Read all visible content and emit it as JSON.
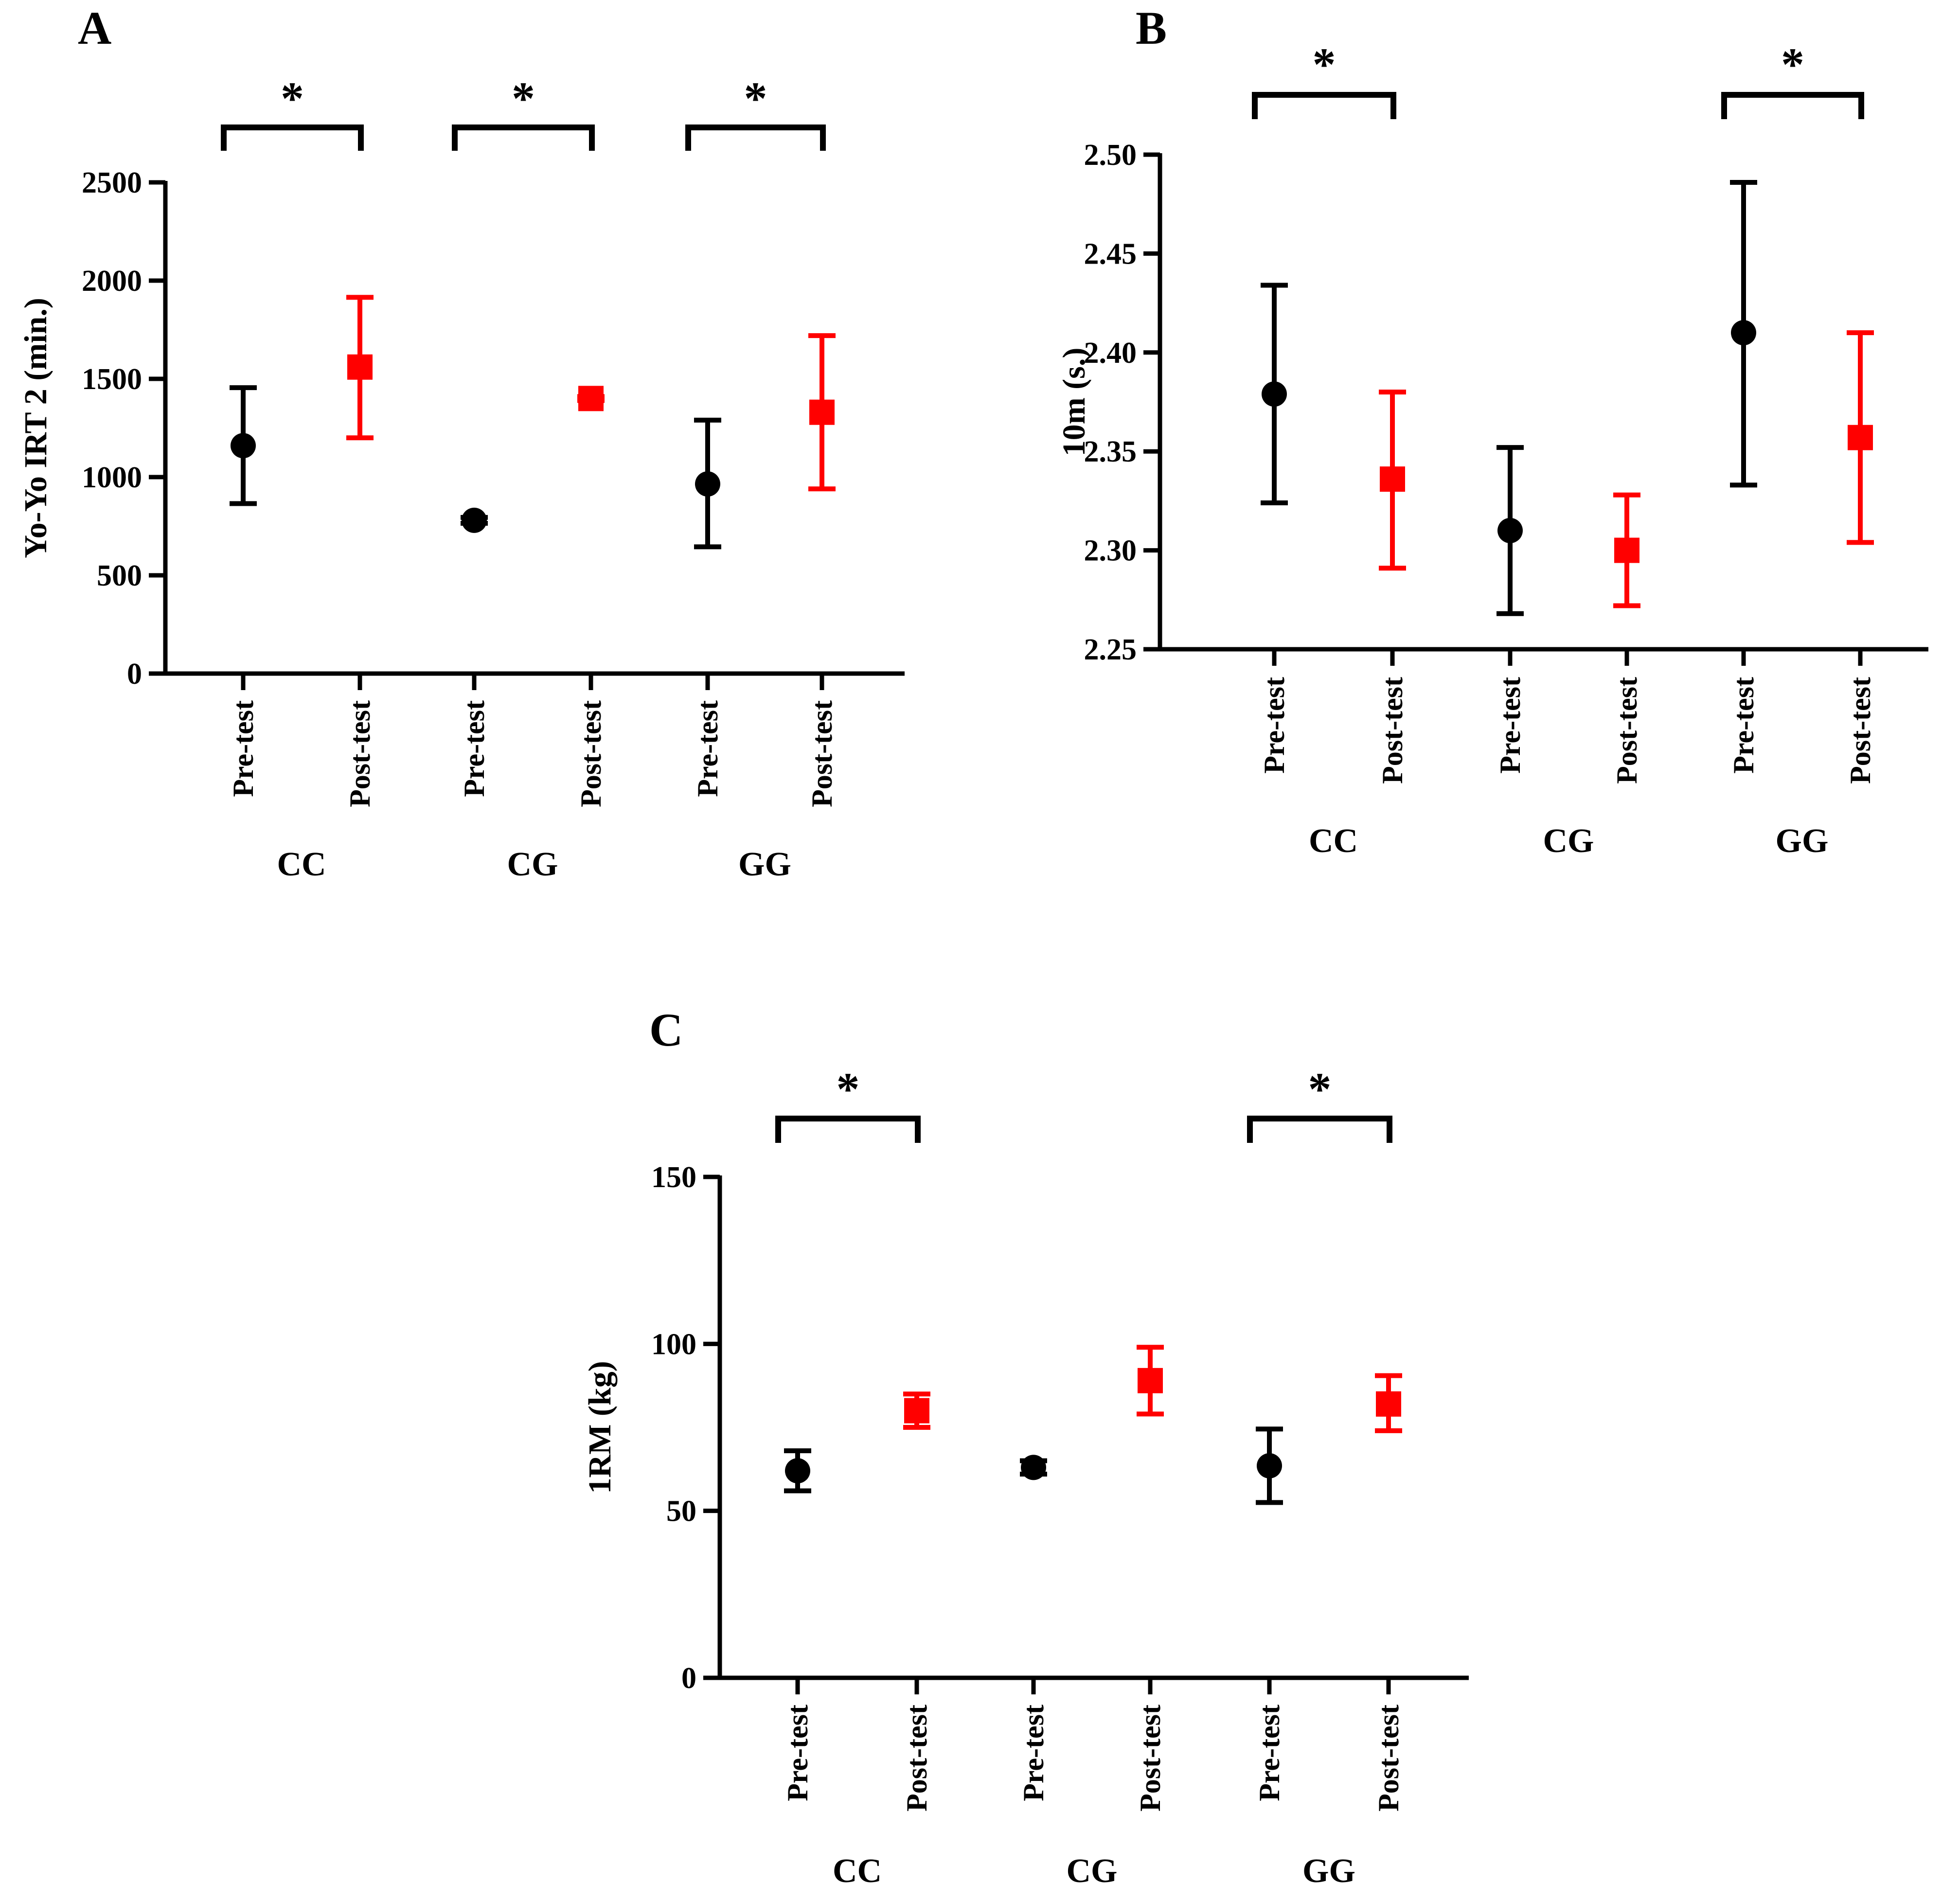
{
  "colors": {
    "pre": "#000000",
    "post": "#ff0000",
    "axis": "#000000"
  },
  "chart_data": [
    {
      "panel": "A",
      "type": "scatter",
      "ylabel": "Yo-Yo IRT 2 (min.)",
      "ylim": [
        0,
        2500
      ],
      "yticks": [
        0,
        500,
        1000,
        1500,
        2000,
        2500
      ],
      "ytick_labels": [
        "0",
        "500",
        "1000",
        "1500",
        "2000",
        "2500"
      ],
      "categories": [
        "Pre-test",
        "Post-test",
        "Pre-test",
        "Post-test",
        "Pre-test",
        "Post-test"
      ],
      "groups": [
        "CC",
        "CG",
        "GG"
      ],
      "series": [
        {
          "key": "pre",
          "marker": "circle",
          "x_index": [
            0,
            2,
            4
          ],
          "values": [
            1160,
            780,
            965
          ],
          "error_low": [
            865,
            765,
            645
          ],
          "error_high": [
            1455,
            795,
            1290
          ]
        },
        {
          "key": "post",
          "marker": "square",
          "x_index": [
            1,
            3,
            5
          ],
          "values": [
            1560,
            1400,
            1330
          ],
          "error_low": [
            1200,
            1390,
            940
          ],
          "error_high": [
            1915,
            1410,
            1720
          ]
        }
      ],
      "significance": [
        {
          "label": "*",
          "from": 0,
          "to": 1
        },
        {
          "label": "*",
          "from": 2,
          "to": 3
        },
        {
          "label": "*",
          "from": 4,
          "to": 5
        }
      ]
    },
    {
      "panel": "B",
      "type": "scatter",
      "ylabel": "10m (s.)",
      "ylim": [
        2.25,
        2.5
      ],
      "yticks": [
        2.25,
        2.3,
        2.35,
        2.4,
        2.45,
        2.5
      ],
      "ytick_labels": [
        "2.25",
        "2.30",
        "2.35",
        "2.40",
        "2.45",
        "2.50"
      ],
      "categories": [
        "Pre-test",
        "Post-test",
        "Pre-test",
        "Post-test",
        "Pre-test",
        "Post-test"
      ],
      "groups": [
        "CC",
        "CG",
        "GG"
      ],
      "series": [
        {
          "key": "pre",
          "marker": "circle",
          "x_index": [
            0,
            2,
            4
          ],
          "values": [
            2.379,
            2.31,
            2.41
          ],
          "error_low": [
            2.324,
            2.268,
            2.333
          ],
          "error_high": [
            2.434,
            2.352,
            2.486
          ]
        },
        {
          "key": "post",
          "marker": "square",
          "x_index": [
            1,
            3,
            5
          ],
          "values": [
            2.336,
            2.3,
            2.357
          ],
          "error_low": [
            2.291,
            2.272,
            2.304
          ],
          "error_high": [
            2.38,
            2.328,
            2.41
          ]
        }
      ],
      "significance": [
        {
          "label": "*",
          "from": 0,
          "to": 1
        },
        {
          "label": "*",
          "from": 4,
          "to": 5
        }
      ]
    },
    {
      "panel": "C",
      "type": "scatter",
      "ylabel": "1RM (kg)",
      "ylim": [
        0,
        150
      ],
      "yticks": [
        0,
        50,
        100,
        150
      ],
      "ytick_labels": [
        "0",
        "50",
        "100",
        "150"
      ],
      "categories": [
        "Pre-test",
        "Post-test",
        "Pre-test",
        "Post-test",
        "Pre-test",
        "Post-test"
      ],
      "groups": [
        "CC",
        "CG",
        "GG"
      ],
      "series": [
        {
          "key": "pre",
          "marker": "circle",
          "x_index": [
            0,
            2,
            4
          ],
          "values": [
            62,
            63,
            63.5
          ],
          "error_low": [
            56,
            61,
            52.5
          ],
          "error_high": [
            68,
            65,
            74.5
          ]
        },
        {
          "key": "post",
          "marker": "square",
          "x_index": [
            1,
            3,
            5
          ],
          "values": [
            80,
            89,
            82
          ],
          "error_low": [
            75,
            79,
            74
          ],
          "error_high": [
            85,
            99,
            90.5
          ]
        }
      ],
      "significance": [
        {
          "label": "*",
          "from": 0,
          "to": 1
        },
        {
          "label": "*",
          "from": 4,
          "to": 5
        }
      ]
    }
  ]
}
